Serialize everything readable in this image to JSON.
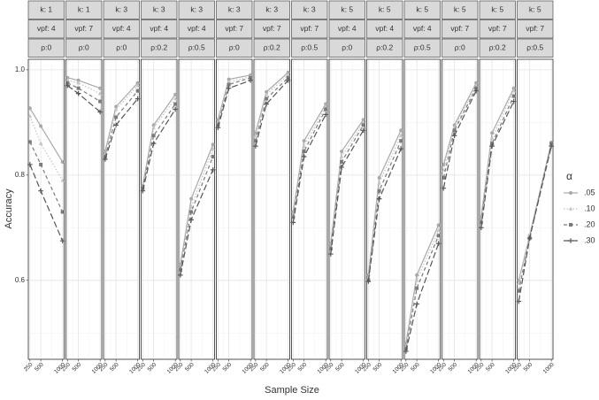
{
  "chart_data": {
    "type": "line",
    "x_label": "Sample Size",
    "y_label": "Accuracy",
    "legend_title": "α",
    "x": [
      250,
      500,
      1000
    ],
    "xlim": [
      212.5,
      1037.5
    ],
    "xticks": [
      250,
      500,
      1000
    ],
    "minor_xticks": [
      375,
      750
    ],
    "ylim": [
      0.45,
      1.02
    ],
    "yticks": [
      0.6,
      0.8,
      {
        "value": 1,
        "label": "1.0"
      }
    ],
    "minor_yticks": [
      0.5,
      0.7,
      0.9
    ],
    "grid": true,
    "series_styles": [
      {
        "name": ".05",
        "color": "#a9a9a9",
        "dash": "solid",
        "marker": "circle"
      },
      {
        "name": ".10",
        "color": "#c4c4c4",
        "dash": "dotted",
        "marker": "triangle"
      },
      {
        "name": ".20",
        "color": "#7b7b7b",
        "dash": "dashed",
        "marker": "square"
      },
      {
        "name": ".30",
        "color": "#555555",
        "dash": "longdash",
        "marker": "plus"
      }
    ],
    "panels": [
      {
        "strips": [
          "k: 1",
          "vpf: 4",
          "ρ:0"
        ],
        "series": [
          {
            "values": [
              0.927,
              0.893,
              0.825
            ]
          },
          {
            "values": [
              0.912,
              0.86,
              0.79
            ]
          },
          {
            "values": [
              0.863,
              0.82,
              0.73
            ]
          },
          {
            "values": [
              0.82,
              0.77,
              0.675
            ]
          }
        ]
      },
      {
        "strips": [
          "k: 1",
          "vpf: 7",
          "ρ:0"
        ],
        "series": [
          {
            "values": [
              0.985,
              0.98,
              0.965
            ]
          },
          {
            "values": [
              0.98,
              0.975,
              0.955
            ]
          },
          {
            "values": [
              0.975,
              0.965,
              0.94
            ]
          },
          {
            "values": [
              0.97,
              0.955,
              0.92
            ]
          }
        ]
      },
      {
        "strips": [
          "k: 3",
          "vpf: 4",
          "ρ:0"
        ],
        "series": [
          {
            "values": [
              0.845,
              0.93,
              0.975
            ]
          },
          {
            "values": [
              0.84,
              0.925,
              0.97
            ]
          },
          {
            "values": [
              0.835,
              0.91,
              0.96
            ]
          },
          {
            "values": [
              0.83,
              0.895,
              0.945
            ]
          }
        ]
      },
      {
        "strips": [
          "k: 3",
          "vpf: 4",
          "ρ:0.2"
        ],
        "series": [
          {
            "values": [
              0.78,
              0.895,
              0.953
            ]
          },
          {
            "values": [
              0.775,
              0.89,
              0.945
            ]
          },
          {
            "values": [
              0.775,
              0.875,
              0.935
            ]
          },
          {
            "values": [
              0.77,
              0.86,
              0.925
            ]
          }
        ]
      },
      {
        "strips": [
          "k: 3",
          "vpf: 4",
          "ρ:0.5"
        ],
        "series": [
          {
            "values": [
              0.63,
              0.755,
              0.858
            ]
          },
          {
            "values": [
              0.625,
              0.74,
              0.85
            ]
          },
          {
            "values": [
              0.62,
              0.73,
              0.835
            ]
          },
          {
            "values": [
              0.61,
              0.715,
              0.81
            ]
          }
        ]
      },
      {
        "strips": [
          "k: 3",
          "vpf: 7",
          "ρ:0"
        ],
        "series": [
          {
            "values": [
              0.905,
              0.982,
              0.99
            ]
          },
          {
            "values": [
              0.9,
              0.977,
              0.987
            ]
          },
          {
            "values": [
              0.895,
              0.972,
              0.985
            ]
          },
          {
            "values": [
              0.89,
              0.965,
              0.98
            ]
          }
        ]
      },
      {
        "strips": [
          "k: 3",
          "vpf: 7",
          "ρ:0.2"
        ],
        "series": [
          {
            "values": [
              0.88,
              0.958,
              0.995
            ]
          },
          {
            "values": [
              0.875,
              0.953,
              0.99
            ]
          },
          {
            "values": [
              0.865,
              0.945,
              0.985
            ]
          },
          {
            "values": [
              0.855,
              0.935,
              0.98
            ]
          }
        ]
      },
      {
        "strips": [
          "k: 3",
          "vpf: 7",
          "ρ:0.5"
        ],
        "series": [
          {
            "values": [
              0.73,
              0.865,
              0.935
            ]
          },
          {
            "values": [
              0.725,
              0.855,
              0.93
            ]
          },
          {
            "values": [
              0.72,
              0.845,
              0.925
            ]
          },
          {
            "values": [
              0.71,
              0.835,
              0.915
            ]
          }
        ]
      },
      {
        "strips": [
          "k: 5",
          "vpf: 4",
          "ρ:0"
        ],
        "series": [
          {
            "values": [
              0.67,
              0.845,
              0.905
            ]
          },
          {
            "values": [
              0.665,
              0.835,
              0.9
            ]
          },
          {
            "values": [
              0.66,
              0.825,
              0.895
            ]
          },
          {
            "values": [
              0.65,
              0.815,
              0.885
            ]
          }
        ]
      },
      {
        "strips": [
          "k: 5",
          "vpf: 4",
          "ρ:0.2"
        ],
        "series": [
          {
            "values": [
              0.61,
              0.795,
              0.885
            ]
          },
          {
            "values": [
              0.605,
              0.785,
              0.875
            ]
          },
          {
            "values": [
              0.6,
              0.77,
              0.865
            ]
          },
          {
            "values": [
              0.598,
              0.755,
              0.85
            ]
          }
        ]
      },
      {
        "strips": [
          "k: 5",
          "vpf: 4",
          "ρ:0.5"
        ],
        "series": [
          {
            "values": [
              0.48,
              0.61,
              0.705
            ]
          },
          {
            "values": [
              0.475,
              0.6,
              0.695
            ]
          },
          {
            "values": [
              0.47,
              0.585,
              0.685
            ]
          },
          {
            "values": [
              0.465,
              0.555,
              0.67
            ]
          }
        ]
      },
      {
        "strips": [
          "k: 5",
          "vpf: 7",
          "ρ:0"
        ],
        "series": [
          {
            "values": [
              0.82,
              0.895,
              0.975
            ]
          },
          {
            "values": [
              0.81,
              0.89,
              0.97
            ]
          },
          {
            "values": [
              0.795,
              0.885,
              0.965
            ]
          },
          {
            "values": [
              0.775,
              0.875,
              0.96
            ]
          }
        ]
      },
      {
        "strips": [
          "k: 5",
          "vpf: 7",
          "ρ:0.2"
        ],
        "series": [
          {
            "values": [
              0.72,
              0.88,
              0.965
            ]
          },
          {
            "values": [
              0.715,
              0.87,
              0.96
            ]
          },
          {
            "values": [
              0.71,
              0.86,
              0.95
            ]
          },
          {
            "values": [
              0.7,
              0.855,
              0.94
            ]
          }
        ]
      },
      {
        "strips": [
          "k: 5",
          "vpf: 7",
          "ρ:0.5"
        ],
        "series": [
          {
            "values": [
              0.6,
              0.685,
              0.862
            ]
          },
          {
            "values": [
              0.595,
              0.685,
              0.86
            ]
          },
          {
            "values": [
              0.58,
              0.68,
              0.86
            ]
          },
          {
            "values": [
              0.56,
              0.68,
              0.855
            ]
          }
        ]
      }
    ]
  }
}
